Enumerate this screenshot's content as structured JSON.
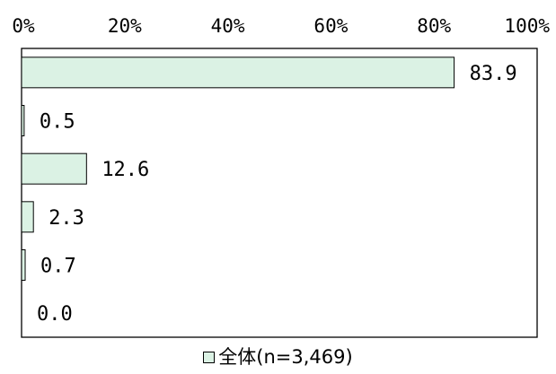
{
  "chart_data": {
    "type": "bar",
    "orientation": "horizontal",
    "title": "",
    "xlabel": "",
    "ylabel": "",
    "xlim": [
      0,
      100
    ],
    "x_ticks": [
      0,
      20,
      40,
      60,
      80,
      100
    ],
    "x_tick_labels": [
      "0%",
      "20%",
      "40%",
      "60%",
      "80%",
      "100%"
    ],
    "categories": [
      "",
      "",
      "",
      "",
      "",
      ""
    ],
    "series": [
      {
        "name": "全体(n=3,469)",
        "values": [
          83.9,
          0.5,
          12.6,
          2.3,
          0.7,
          0.0
        ],
        "value_labels": [
          "83.9",
          "0.5",
          "12.6",
          "2.3",
          "0.7",
          "0.0"
        ]
      }
    ],
    "grid": false,
    "legend_position": "bottom-center",
    "colors": {
      "bar_fill": "#dbf2e4",
      "bar_stroke": "#000000",
      "frame": "#000000"
    }
  }
}
